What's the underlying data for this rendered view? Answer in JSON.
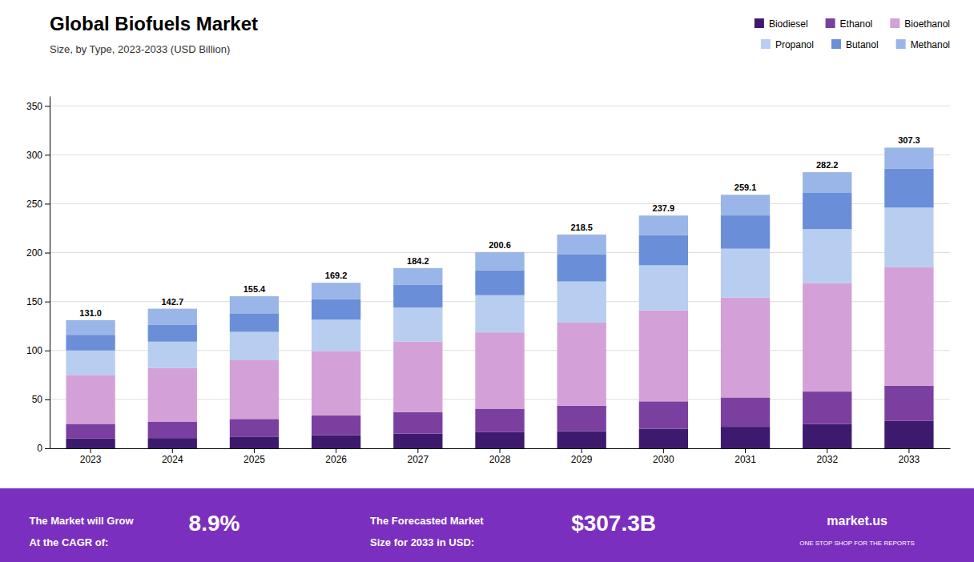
{
  "chart_data": {
    "type": "bar",
    "stacked": true,
    "title": "Global Biofuels Market",
    "subtitle": "Size, by Type, 2023-2033 (USD Billion)",
    "categories": [
      "2023",
      "2024",
      "2025",
      "2026",
      "2027",
      "2028",
      "2029",
      "2030",
      "2031",
      "2032",
      "2033"
    ],
    "series": [
      {
        "name": "Biodiesel",
        "color": "#3d1a6e",
        "values": [
          10.0,
          10.5,
          12.0,
          13.5,
          15.0,
          16.5,
          17.5,
          20.0,
          22.0,
          25.0,
          28.0
        ]
      },
      {
        "name": "Ethanol",
        "color": "#7b3fa0",
        "values": [
          15.0,
          16.5,
          18.0,
          20.0,
          22.0,
          24.0,
          26.0,
          28.0,
          30.0,
          33.0,
          36.0
        ]
      },
      {
        "name": "Bioethanol",
        "color": "#d4a0d8",
        "values": [
          50.0,
          55.0,
          60.0,
          66.0,
          72.0,
          78.0,
          85.0,
          93.0,
          102.0,
          111.0,
          121.0
        ]
      },
      {
        "name": "Propanol",
        "color": "#b8cef0",
        "values": [
          25.0,
          27.0,
          29.0,
          32.0,
          35.0,
          38.0,
          42.0,
          46.0,
          50.0,
          55.0,
          61.0
        ]
      },
      {
        "name": "Butanol",
        "color": "#6a8fd8",
        "values": [
          16.0,
          17.5,
          19.0,
          21.0,
          23.0,
          25.5,
          28.0,
          31.0,
          34.0,
          37.0,
          40.0
        ]
      },
      {
        "name": "Methanol",
        "color": "#9ab5e8",
        "values": [
          15.0,
          16.2,
          17.4,
          16.7,
          17.2,
          18.6,
          20.0,
          19.9,
          21.1,
          21.2,
          21.3
        ]
      }
    ],
    "totals": [
      131.0,
      142.7,
      155.4,
      169.2,
      184.2,
      200.6,
      218.5,
      237.9,
      259.1,
      282.2,
      307.3
    ],
    "total_labels": [
      "131.0",
      "142.7",
      "155.4",
      "169.2",
      "184.2",
      "200.6",
      "218.5",
      "237.9",
      "259.1",
      "282.2",
      "307.3"
    ],
    "ylim": [
      0,
      360
    ],
    "yticks": [
      0,
      50,
      100,
      150,
      200,
      250,
      300,
      350
    ],
    "grid": true,
    "legend": "upper-right",
    "annotations": [
      "The Market will Grow",
      "At the CAGR of:",
      "8.9%",
      "The Forecasted Market",
      "Size for 2033 in USD:",
      "$307.3B",
      "market.us",
      "ONE STOP SHOP FOR THE REPORTS"
    ]
  }
}
